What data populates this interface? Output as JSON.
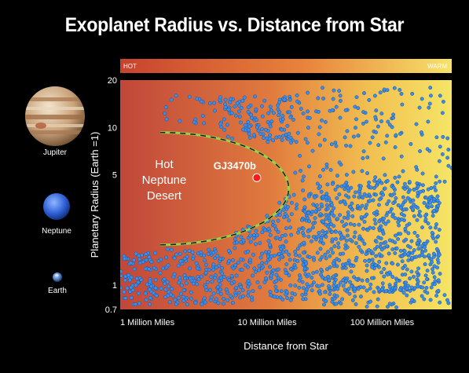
{
  "chart_data": {
    "type": "scatter",
    "title": "Exoplanet Radius vs. Distance from Star",
    "xlabel": "Distance from Star",
    "ylabel": "Planetary Radius (Earth =1)",
    "x_scale": "log",
    "y_scale": "log",
    "xlim_miles": [
      1000000,
      180000000
    ],
    "ylim": [
      0.7,
      20
    ],
    "x_ticks": [
      {
        "value": 1000000,
        "label": "1 Million Miles"
      },
      {
        "value": 10000000,
        "label": "10 Million Miles"
      },
      {
        "value": 100000000,
        "label": "100 Million Miles"
      }
    ],
    "y_ticks": [
      {
        "value": 20,
        "label": "20"
      },
      {
        "value": 10,
        "label": "10"
      },
      {
        "value": 5,
        "label": "5"
      },
      {
        "value": 1,
        "label": "1"
      },
      {
        "value": 0.7,
        "label": "0.7"
      }
    ],
    "temperature_band": {
      "left_label": "HOT",
      "right_label": "WARM",
      "colors": [
        "#c8432e",
        "#e8823a",
        "#f7e36a"
      ]
    },
    "region": {
      "label_lines": [
        "Hot",
        "Neptune",
        "Desert"
      ],
      "boundary_color": "#9ad14a",
      "boundary_dash_color": "#1a1a1a",
      "boundary_x_min_miles": 1000000,
      "boundary_x_max_miles": 14000000,
      "boundary_y_min": 1.8,
      "boundary_y_max": 9.3
    },
    "highlight_point": {
      "label": "GJ3470b",
      "x_miles": 8500000,
      "y": 4.8,
      "color": "#ff1a1a"
    },
    "point_color": "#3a8ee8",
    "background_colors": [
      "#c0473a",
      "#e07a3e",
      "#f2c050",
      "#f5e566"
    ],
    "point_clusters": [
      {
        "x_range_miles": [
          1000000,
          2000000
        ],
        "y_range": [
          0.75,
          1.6
        ],
        "count": 90
      },
      {
        "x_range_miles": [
          2000000,
          6000000
        ],
        "y_range": [
          0.75,
          1.7
        ],
        "count": 160
      },
      {
        "x_range_miles": [
          6000000,
          20000000
        ],
        "y_range": [
          0.8,
          4.0
        ],
        "count": 280
      },
      {
        "x_range_miles": [
          20000000,
          150000000
        ],
        "y_range": [
          0.9,
          4.5
        ],
        "count": 650
      },
      {
        "x_range_miles": [
          5000000,
          15000000
        ],
        "y_range": [
          8.0,
          16.0
        ],
        "count": 120
      },
      {
        "x_range_miles": [
          2000000,
          5000000
        ],
        "y_range": [
          10.0,
          16.0
        ],
        "count": 25
      },
      {
        "x_range_miles": [
          15000000,
          180000000
        ],
        "y_range": [
          4.5,
          18.0
        ],
        "count": 160
      },
      {
        "x_range_miles": [
          20000000,
          180000000
        ],
        "y_range": [
          0.72,
          1.0
        ],
        "count": 70
      }
    ]
  },
  "legend_planets": [
    {
      "name": "Jupiter",
      "icon": "jupiter-icon"
    },
    {
      "name": "Neptune",
      "icon": "neptune-icon"
    },
    {
      "name": "Earth",
      "icon": "earth-icon"
    }
  ]
}
